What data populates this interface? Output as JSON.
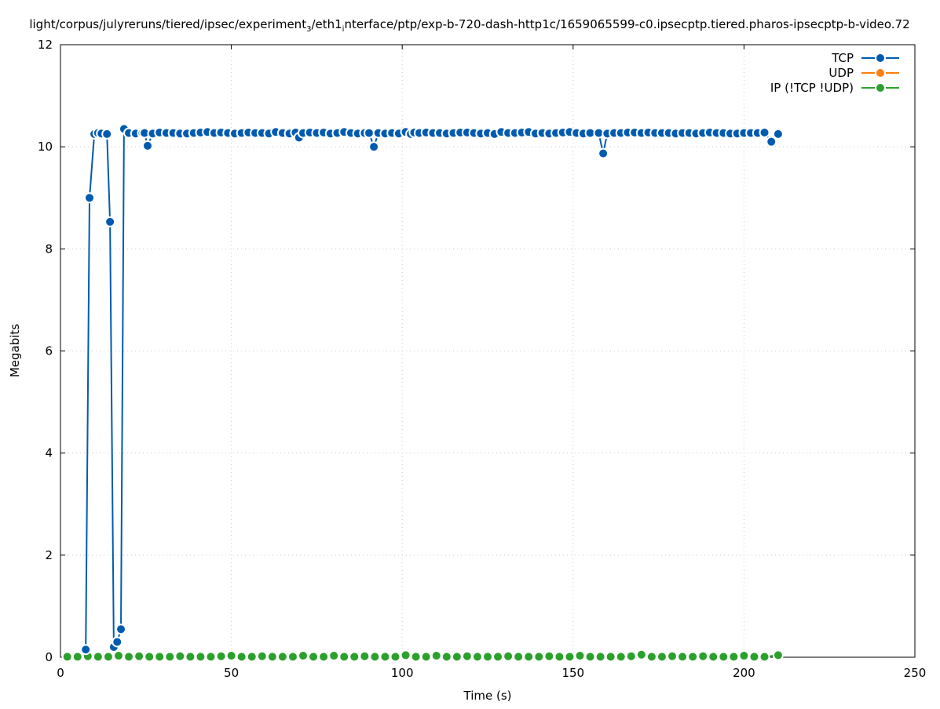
{
  "chart_data": {
    "type": "line",
    "title_parts": [
      "light/corpus/julyreruns/tiered/ipsec/experiment",
      "3",
      "/eth1",
      "i",
      "nterface/ptp/exp-b-720-dash-http1c/1659065599-c0.ipsecptp.tiered.pharos-ipsecptp-b-video.72"
    ],
    "xlabel": "Time (s)",
    "ylabel": "Megabits",
    "xlim": [
      0,
      250
    ],
    "ylim": [
      0,
      12
    ],
    "xticks": [
      0,
      50,
      100,
      150,
      200,
      250
    ],
    "yticks": [
      0,
      2,
      4,
      6,
      8,
      10,
      12
    ],
    "grid": true,
    "legend_position": "top-right",
    "series": [
      {
        "name": "TCP",
        "color": "#005bb0",
        "x": [
          7.4,
          8.5,
          9.9,
          11,
          12,
          13.6,
          14.5,
          15.6,
          16.6,
          17.7,
          18.6,
          20,
          22,
          24,
          24.6,
          25.5,
          27,
          29,
          31,
          33,
          35,
          37,
          39,
          41,
          43,
          45,
          47,
          49,
          51,
          53,
          55,
          57,
          59,
          61,
          63,
          65,
          67,
          68.8,
          69.8,
          71,
          73,
          75,
          77,
          79,
          81,
          83,
          85,
          87,
          89,
          90.3,
          91.7,
          93,
          95,
          97,
          99,
          101,
          102.5,
          103.5,
          105,
          107,
          109,
          111,
          113,
          115,
          117,
          119,
          121,
          123,
          125,
          127,
          129,
          131,
          133,
          135,
          137,
          139,
          141,
          143,
          145,
          147,
          149,
          151,
          153,
          155,
          157.5,
          158.8,
          160,
          162,
          164,
          166,
          168,
          170,
          172,
          174,
          176,
          178,
          180,
          182,
          184,
          186,
          188,
          190,
          192,
          194,
          196,
          198,
          200,
          202,
          204,
          206,
          208,
          210
        ],
        "y": [
          0.15,
          9.0,
          10.25,
          10.27,
          10.26,
          10.25,
          8.53,
          0.2,
          0.3,
          0.55,
          10.35,
          10.27,
          10.26,
          10.27,
          10.27,
          10.02,
          10.26,
          10.28,
          10.27,
          10.27,
          10.26,
          10.26,
          10.27,
          10.28,
          10.29,
          10.27,
          10.28,
          10.27,
          10.26,
          10.27,
          10.28,
          10.27,
          10.27,
          10.26,
          10.29,
          10.27,
          10.26,
          10.28,
          10.18,
          10.27,
          10.28,
          10.27,
          10.28,
          10.26,
          10.27,
          10.29,
          10.27,
          10.26,
          10.27,
          10.27,
          10.0,
          10.27,
          10.26,
          10.27,
          10.26,
          10.29,
          10.25,
          10.28,
          10.27,
          10.28,
          10.27,
          10.27,
          10.26,
          10.27,
          10.28,
          10.28,
          10.27,
          10.26,
          10.27,
          10.25,
          10.29,
          10.27,
          10.27,
          10.28,
          10.29,
          10.26,
          10.27,
          10.26,
          10.27,
          10.28,
          10.29,
          10.27,
          10.26,
          10.27,
          10.27,
          9.87,
          10.26,
          10.27,
          10.27,
          10.28,
          10.28,
          10.27,
          10.28,
          10.27,
          10.27,
          10.27,
          10.26,
          10.27,
          10.27,
          10.26,
          10.27,
          10.28,
          10.27,
          10.27,
          10.26,
          10.26,
          10.27,
          10.27,
          10.27,
          10.28,
          10.1,
          10.25
        ]
      },
      {
        "name": "UDP",
        "color": "#ff7f0e",
        "x": [],
        "y": []
      },
      {
        "name": "IP (!TCP  !UDP)",
        "color": "#2ca02c",
        "x": [
          2,
          5,
          8,
          11,
          14,
          17,
          20,
          23,
          26,
          29,
          32,
          35,
          38,
          41,
          44,
          47,
          50,
          53,
          56,
          59,
          62,
          65,
          68,
          71,
          74,
          77,
          80,
          83,
          86,
          89,
          92,
          95,
          98,
          101,
          104,
          107,
          110,
          113,
          116,
          119,
          122,
          125,
          128,
          131,
          134,
          137,
          140,
          143,
          146,
          149,
          152,
          155,
          158,
          161,
          164,
          167,
          170,
          173,
          176,
          179,
          182,
          185,
          188,
          191,
          194,
          197,
          200,
          203,
          206,
          210
        ],
        "y": [
          0.01,
          0.01,
          0.02,
          0.01,
          0.01,
          0.03,
          0.01,
          0.02,
          0.01,
          0.01,
          0.01,
          0.02,
          0.01,
          0.01,
          0.01,
          0.02,
          0.03,
          0.01,
          0.01,
          0.02,
          0.01,
          0.01,
          0.01,
          0.03,
          0.01,
          0.01,
          0.03,
          0.01,
          0.01,
          0.02,
          0.01,
          0.01,
          0.01,
          0.04,
          0.01,
          0.01,
          0.03,
          0.01,
          0.01,
          0.02,
          0.01,
          0.01,
          0.01,
          0.02,
          0.01,
          0.01,
          0.01,
          0.02,
          0.01,
          0.01,
          0.03,
          0.01,
          0.01,
          0.01,
          0.01,
          0.02,
          0.05,
          0.01,
          0.01,
          0.02,
          0.01,
          0.01,
          0.02,
          0.01,
          0.01,
          0.01,
          0.03,
          0.01,
          0.01,
          0.04
        ]
      }
    ]
  }
}
